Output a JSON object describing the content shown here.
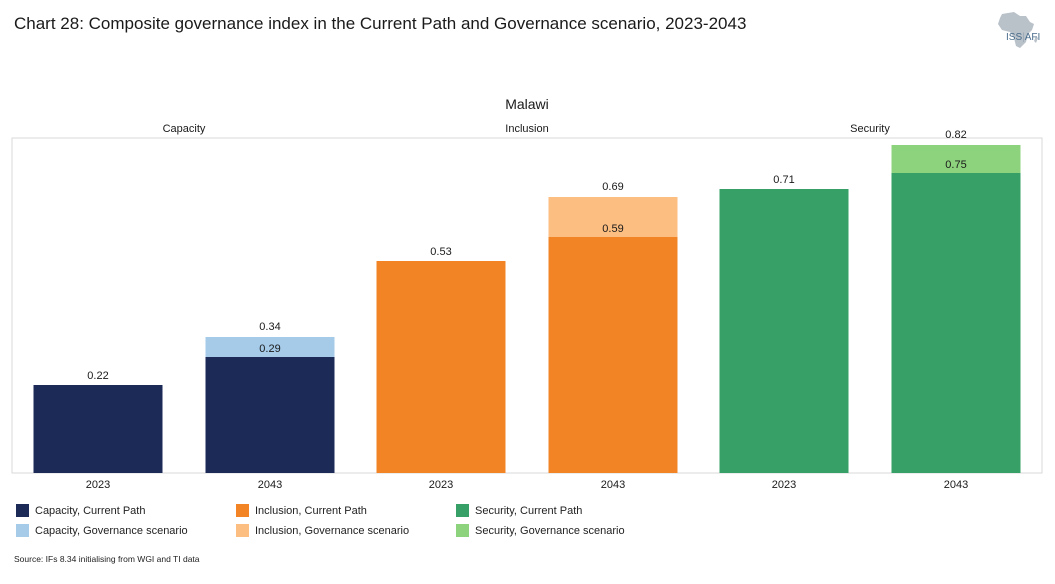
{
  "title": "Chart 28: Composite governance index in the Current Path and Governance scenario, 2023-2043",
  "logo": {
    "name": "africa-map-icon",
    "text_main": "ISS",
    "text_sep": "|",
    "text_sub": "AFI"
  },
  "chart_data": {
    "type": "bar",
    "subtitle": "Malawi",
    "ylim": [
      0,
      0.85
    ],
    "groups": [
      {
        "label": "Capacity",
        "bars": [
          {
            "year": "2023",
            "current_path": 0.22,
            "governance": null,
            "current_label": "0.22",
            "governance_label": ""
          },
          {
            "year": "2043",
            "current_path": 0.29,
            "governance": 0.34,
            "current_label": "0.29",
            "governance_label": "0.34"
          }
        ]
      },
      {
        "label": "Inclusion",
        "bars": [
          {
            "year": "2023",
            "current_path": 0.53,
            "governance": null,
            "current_label": "0.53",
            "governance_label": ""
          },
          {
            "year": "2043",
            "current_path": 0.59,
            "governance": 0.69,
            "current_label": "0.59",
            "governance_label": "0.69"
          }
        ]
      },
      {
        "label": "Security",
        "bars": [
          {
            "year": "2023",
            "current_path": 0.71,
            "governance": null,
            "current_label": "0.71",
            "governance_label": ""
          },
          {
            "year": "2043",
            "current_path": 0.75,
            "governance": 0.82,
            "current_label": "0.75",
            "governance_label": "0.82"
          }
        ]
      }
    ],
    "colors": {
      "capacity_current": "#1b2a57",
      "capacity_governance": "#a5cbe9",
      "inclusion_current": "#f38426",
      "inclusion_governance": "#fcbe81",
      "security_current": "#36a066",
      "security_governance": "#8dd37d"
    }
  },
  "legend": {
    "items": [
      {
        "label": "Capacity, Current Path",
        "color": "#1b2a57"
      },
      {
        "label": "Capacity, Governance scenario",
        "color": "#a5cbe9"
      },
      {
        "label": "Inclusion, Current Path",
        "color": "#f38426"
      },
      {
        "label": "Inclusion, Governance scenario",
        "color": "#fcbe81"
      },
      {
        "label": "Security, Current Path",
        "color": "#36a066"
      },
      {
        "label": "Security, Governance scenario",
        "color": "#8dd37d"
      }
    ]
  },
  "source": "Source: IFs 8.34 initialising from WGI and TI data"
}
